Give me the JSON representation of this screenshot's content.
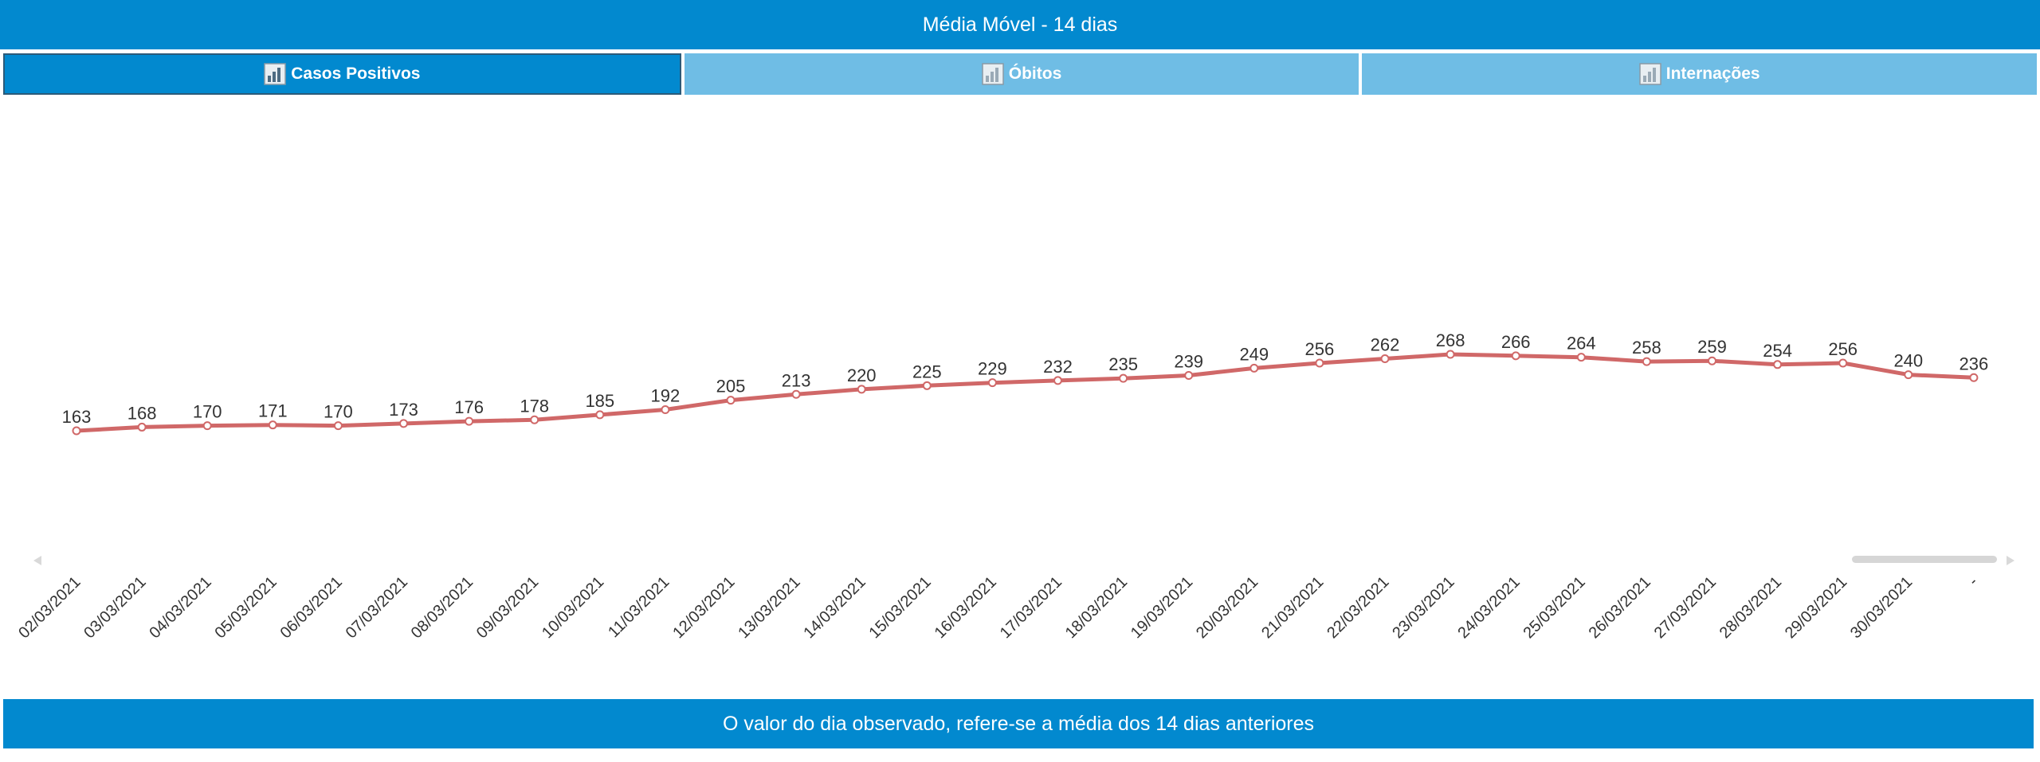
{
  "header": {
    "title": "Média Móvel - 14 dias"
  },
  "tabs": [
    {
      "label": "Casos Positivos",
      "active": true,
      "icon": "bar-chart-icon"
    },
    {
      "label": "Óbitos",
      "active": false,
      "icon": "bar-chart-icon"
    },
    {
      "label": "Internações",
      "active": false,
      "icon": "bar-chart-icon"
    }
  ],
  "footer": {
    "text": "O valor do dia observado, refere-se a média dos 14 dias anteriores"
  },
  "colors": {
    "accent": "#0289cf",
    "tab_inactive": "#6fbde5",
    "line": "#d06868"
  },
  "chart_data": {
    "type": "line",
    "categories": [
      "02/03/2021",
      "03/03/2021",
      "04/03/2021",
      "05/03/2021",
      "06/03/2021",
      "07/03/2021",
      "08/03/2021",
      "09/03/2021",
      "10/03/2021",
      "11/03/2021",
      "12/03/2021",
      "13/03/2021",
      "14/03/2021",
      "15/03/2021",
      "16/03/2021",
      "17/03/2021",
      "18/03/2021",
      "19/03/2021",
      "20/03/2021",
      "21/03/2021",
      "22/03/2021",
      "23/03/2021",
      "24/03/2021",
      "25/03/2021",
      "26/03/2021",
      "27/03/2021",
      "28/03/2021",
      "29/03/2021",
      "30/03/2021",
      "-"
    ],
    "series": [
      {
        "values": [
          163,
          168,
          170,
          171,
          170,
          173,
          176,
          178,
          185,
          192,
          205,
          213,
          220,
          225,
          229,
          232,
          235,
          239,
          249,
          256,
          262,
          268,
          266,
          264,
          258,
          259,
          254,
          256,
          240,
          236
        ]
      }
    ],
    "data_labels": true,
    "grid": false,
    "legend": "none",
    "scrollbar": true
  }
}
